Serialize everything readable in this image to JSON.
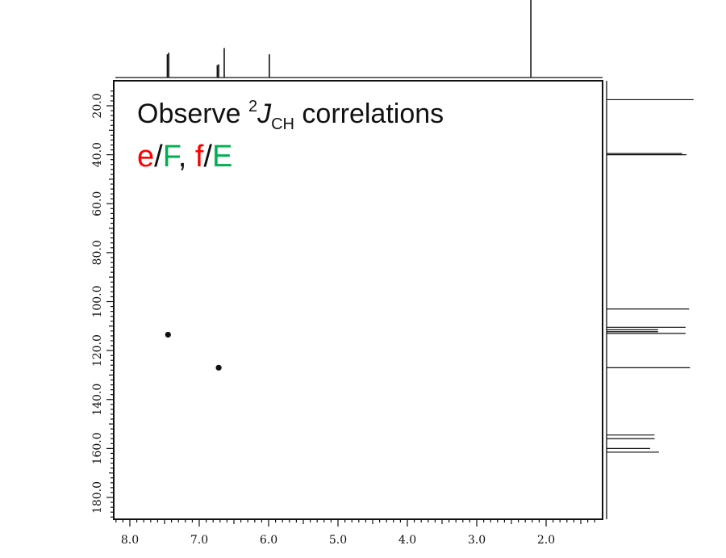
{
  "chart_data": {
    "type": "scatter",
    "title_parts": {
      "prefix": "Observe ",
      "superscript": "2",
      "italic": "J",
      "subscript": "CH",
      "suffix": " correlations"
    },
    "subtitle_parts": [
      {
        "text": "e",
        "color": "#ff0000"
      },
      {
        "text": "/",
        "color": "#111111"
      },
      {
        "text": "F",
        "color": "#00b050"
      },
      {
        "text": ", ",
        "color": "#111111"
      },
      {
        "text": "f",
        "color": "#ff0000"
      },
      {
        "text": "/",
        "color": "#111111"
      },
      {
        "text": "E",
        "color": "#00b050"
      }
    ],
    "x_axis": {
      "reversed": true,
      "range": [
        8.2,
        1.2
      ],
      "ticks": [
        8.0,
        7.0,
        6.0,
        5.0,
        4.0,
        3.0,
        2.0
      ],
      "tick_labels": [
        "8.0",
        "7.0",
        "6.0",
        "5.0",
        "4.0",
        "3.0",
        "2.0"
      ]
    },
    "y_axis": {
      "inverted": true,
      "range": [
        12,
        188
      ],
      "ticks": [
        20,
        40,
        60,
        80,
        100,
        120,
        140,
        160,
        180
      ],
      "tick_labels": [
        "20.0",
        "40.0",
        "60.0",
        "80.0",
        "100.0",
        "120.0",
        "140.0",
        "160.0",
        "180.0"
      ]
    },
    "points": [
      {
        "x": 7.45,
        "y": 113.5
      },
      {
        "x": 6.72,
        "y": 127.0
      }
    ],
    "top_projection_peaks": [
      {
        "x": 7.46,
        "h": 0.3
      },
      {
        "x": 7.44,
        "h": 0.32
      },
      {
        "x": 6.74,
        "h": 0.16
      },
      {
        "x": 6.72,
        "h": 0.17
      },
      {
        "x": 6.64,
        "h": 0.38
      },
      {
        "x": 5.99,
        "h": 0.3
      },
      {
        "x": 2.22,
        "h": 1.0
      }
    ],
    "side_projection_peaks": [
      {
        "y": 17.5,
        "h": 0.98
      },
      {
        "y": 39.5,
        "h": 0.85
      },
      {
        "y": 40.0,
        "h": 0.9
      },
      {
        "y": 103.0,
        "h": 0.93
      },
      {
        "y": 110.5,
        "h": 0.89
      },
      {
        "y": 111.5,
        "h": 0.58
      },
      {
        "y": 112.3,
        "h": 0.58
      },
      {
        "y": 113.0,
        "h": 0.89
      },
      {
        "y": 127.0,
        "h": 0.94
      },
      {
        "y": 154.5,
        "h": 0.54
      },
      {
        "y": 156.0,
        "h": 0.54
      },
      {
        "y": 160.0,
        "h": 0.49
      },
      {
        "y": 161.5,
        "h": 0.59
      }
    ],
    "grid": false,
    "colors": {
      "axis": "#111111",
      "point": "#111111",
      "red": "#ff0000",
      "green": "#00b050"
    }
  }
}
